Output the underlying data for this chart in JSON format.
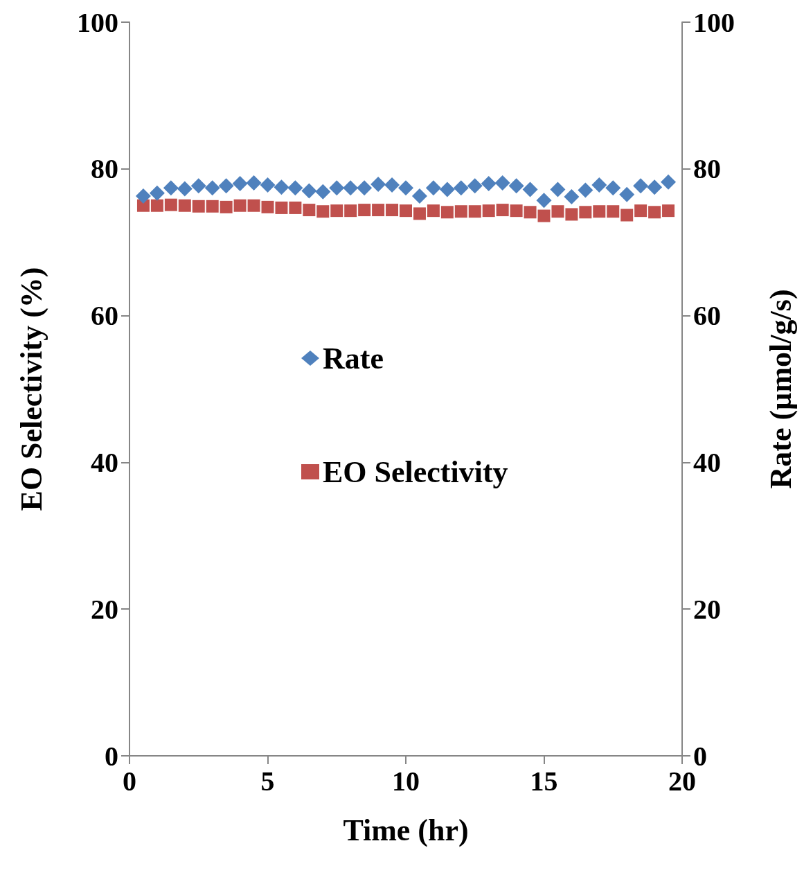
{
  "chart_data": {
    "type": "scatter",
    "xlabel": "Time (hr)",
    "ylabel": "EO Selectivity (%)",
    "y2label": "Rate (µmol/g/s)",
    "xlim": [
      0,
      20
    ],
    "xticks": [
      0,
      5,
      10,
      15,
      20
    ],
    "ylim": [
      0,
      100
    ],
    "yticks": [
      0,
      20,
      40,
      60,
      80,
      100
    ],
    "y2lim": [
      0,
      100
    ],
    "y2ticks": [
      0,
      20,
      40,
      60,
      80,
      100
    ],
    "grid": false,
    "legend": "center",
    "x": [
      0.5,
      1,
      1.5,
      2,
      2.5,
      3,
      3.5,
      4,
      4.5,
      5,
      5.5,
      6,
      6.5,
      7,
      7.5,
      8,
      8.5,
      9,
      9.5,
      10,
      10.5,
      11,
      11.5,
      12,
      12.5,
      13,
      13.5,
      14,
      14.5,
      15,
      15.5,
      16,
      16.5,
      17,
      17.5,
      18,
      18.5,
      19,
      19.5
    ],
    "series": [
      {
        "name": "Rate",
        "color": "#4f81bd",
        "marker": "diamond",
        "values": [
          76.3,
          76.7,
          77.4,
          77.3,
          77.7,
          77.4,
          77.7,
          78.0,
          78.1,
          77.8,
          77.5,
          77.4,
          77.0,
          76.9,
          77.4,
          77.4,
          77.4,
          77.9,
          77.8,
          77.4,
          76.3,
          77.4,
          77.2,
          77.4,
          77.7,
          78.0,
          78.1,
          77.7,
          77.2,
          75.7,
          77.2,
          76.2,
          77.1,
          77.8,
          77.4,
          76.5,
          77.7,
          77.5,
          78.2
        ]
      },
      {
        "name": "EO Selectivity",
        "color": "#c0504d",
        "marker": "square",
        "values": [
          75.0,
          75.0,
          75.1,
          75.0,
          74.9,
          74.9,
          74.8,
          75.0,
          75.0,
          74.8,
          74.7,
          74.7,
          74.4,
          74.2,
          74.3,
          74.3,
          74.4,
          74.4,
          74.4,
          74.3,
          73.9,
          74.3,
          74.1,
          74.2,
          74.2,
          74.3,
          74.4,
          74.3,
          74.1,
          73.6,
          74.2,
          73.8,
          74.1,
          74.2,
          74.2,
          73.7,
          74.3,
          74.1,
          74.3
        ]
      }
    ]
  }
}
